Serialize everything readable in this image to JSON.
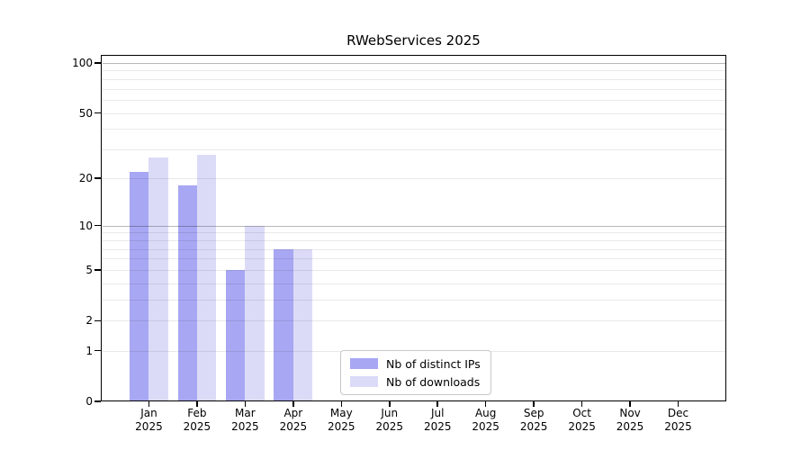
{
  "chart_data": {
    "type": "bar",
    "title": "RWebServices 2025",
    "categories": [
      "Jan 2025",
      "Feb 2025",
      "Mar 2025",
      "Apr 2025",
      "May 2025",
      "Jun 2025",
      "Jul 2025",
      "Aug 2025",
      "Sep 2025",
      "Oct 2025",
      "Nov 2025",
      "Dec 2025"
    ],
    "series": [
      {
        "name": "Nb of distinct IPs",
        "color": "#a7a7f3",
        "values": [
          22,
          18,
          5,
          7,
          0,
          0,
          0,
          0,
          0,
          0,
          0,
          0
        ]
      },
      {
        "name": "Nb of downloads",
        "color": "#dbdbf8",
        "values": [
          27,
          28,
          10,
          7,
          0,
          0,
          0,
          0,
          0,
          0,
          0,
          0
        ]
      }
    ],
    "y_axis": {
      "scale": "log1p",
      "ticks": [
        0,
        1,
        2,
        5,
        10,
        20,
        50,
        100
      ],
      "minor_gridlines": [
        1,
        2,
        3,
        4,
        5,
        6,
        7,
        8,
        9,
        20,
        30,
        40,
        50,
        60,
        70,
        80,
        90
      ],
      "major_gridlines": [
        10,
        100
      ],
      "ylim": [
        0,
        100
      ]
    },
    "legend": {
      "position": "bottom-inside",
      "entries": [
        "Nb of distinct IPs",
        "Nb of downloads"
      ]
    },
    "colors": {
      "minor_grid": "rgba(0,0,0,0.085)",
      "major_grid": "rgba(0,0,0,0.28)",
      "axis": "#000000"
    }
  }
}
